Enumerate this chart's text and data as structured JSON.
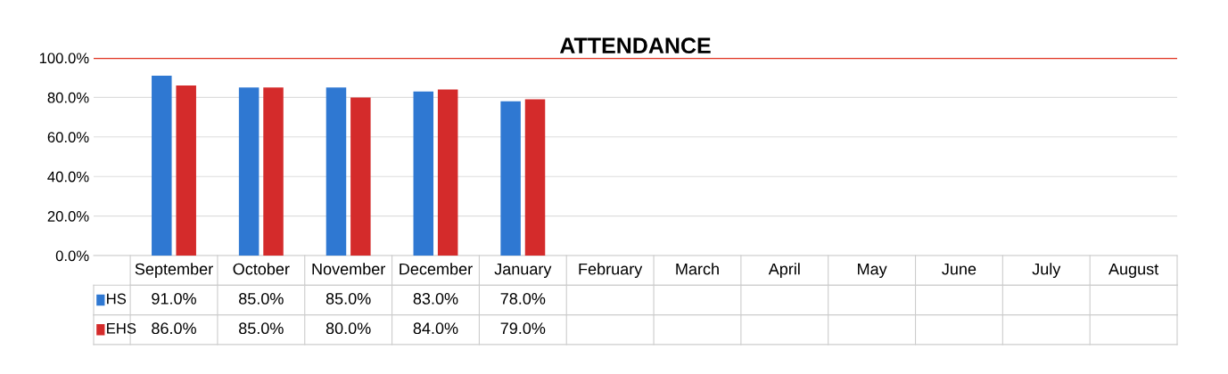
{
  "chart_data": {
    "type": "bar",
    "title": "ATTENDANCE",
    "categories": [
      "September",
      "October",
      "November",
      "December",
      "January",
      "February",
      "March",
      "April",
      "May",
      "June",
      "July",
      "August"
    ],
    "series": [
      {
        "name": "HS",
        "color": "#2f78d2",
        "values": [
          91,
          85,
          85,
          83,
          78,
          null,
          null,
          null,
          null,
          null,
          null,
          null
        ],
        "value_labels": [
          "91.0%",
          "85.0%",
          "85.0%",
          "83.0%",
          "78.0%",
          null,
          null,
          null,
          null,
          null,
          null,
          null
        ]
      },
      {
        "name": "EHS",
        "color": "#d42b2b",
        "values": [
          86,
          85,
          80,
          84,
          79,
          null,
          null,
          null,
          null,
          null,
          null,
          null
        ],
        "value_labels": [
          "86.0%",
          "85.0%",
          "80.0%",
          "84.0%",
          "79.0%",
          null,
          null,
          null,
          null,
          null,
          null,
          null
        ]
      }
    ],
    "ylim": [
      0,
      100
    ],
    "yticks": [
      {
        "value": 0,
        "label": "0.0%"
      },
      {
        "value": 20,
        "label": "20.0%"
      },
      {
        "value": 40,
        "label": "40.0%"
      },
      {
        "value": 60,
        "label": "60.0%"
      },
      {
        "value": 80,
        "label": "80.0%"
      },
      {
        "value": 100,
        "label": "100.0%"
      }
    ],
    "ref_lines": [
      {
        "axis": "y",
        "value": 100,
        "color": "#e0301e"
      }
    ],
    "grid": "y",
    "legend": "bottom left"
  }
}
